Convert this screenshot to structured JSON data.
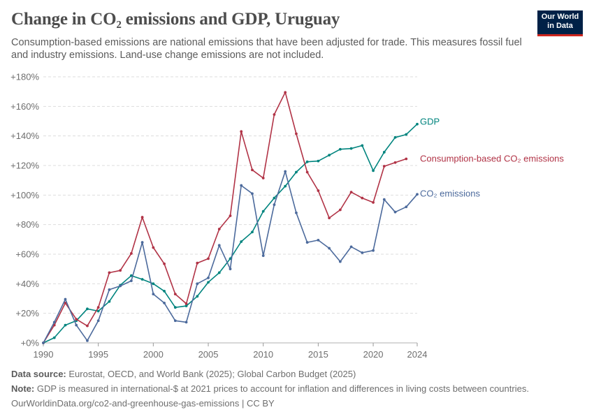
{
  "header": {
    "title": "Change in CO₂ emissions and GDP, Uruguay",
    "subtitle": "Consumption-based emissions are national emissions that have been adjusted for trade. This measures fossil fuel and industry emissions. Land-use change emissions are not included.",
    "logo_line1": "Our World",
    "logo_line2": "in Data",
    "logo_color": "#002147",
    "logo_accent": "#ce261e"
  },
  "footer": {
    "source_label": "Data source:",
    "source_text": "Eurostat, OECD, and World Bank (2025); Global Carbon Budget (2025)",
    "note_label": "Note:",
    "note_text": "GDP is measured in international-$ at 2021 prices to account for inflation and differences in living costs between countries.",
    "url": "OurWorldinData.org/co2-and-greenhouse-gas-emissions | CC BY"
  },
  "chart_data": {
    "type": "line",
    "xlim": [
      1990,
      2024
    ],
    "ylim": [
      0,
      180
    ],
    "x_ticks": [
      1990,
      1995,
      2000,
      2005,
      2010,
      2015,
      2020,
      2024
    ],
    "x_tick_labels": [
      "1990",
      "1995",
      "2000",
      "2005",
      "2010",
      "2015",
      "2020",
      "2024"
    ],
    "y_ticks": [
      0,
      20,
      40,
      60,
      80,
      100,
      120,
      140,
      160,
      180
    ],
    "y_tick_labels": [
      "+0%",
      "+20%",
      "+40%",
      "+60%",
      "+80%",
      "+100%",
      "+120%",
      "+140%",
      "+160%",
      "+180%"
    ],
    "grid": true,
    "series": [
      {
        "name": "GDP",
        "color": "#00847e",
        "x": [
          1990,
          1991,
          1992,
          1993,
          1994,
          1995,
          1996,
          1997,
          1998,
          1999,
          2000,
          2001,
          2002,
          2003,
          2004,
          2005,
          2006,
          2007,
          2008,
          2009,
          2010,
          2011,
          2012,
          2013,
          2014,
          2015,
          2016,
          2017,
          2018,
          2019,
          2020,
          2021,
          2022,
          2023,
          2024
        ],
        "values": [
          0,
          3.5,
          12,
          15,
          23,
          21.5,
          28,
          39,
          45.5,
          43,
          40,
          35,
          24,
          25,
          31.5,
          41,
          47.5,
          57,
          68.5,
          75,
          89,
          98,
          106,
          115.5,
          122.5,
          123,
          127,
          131,
          131.5,
          133.5,
          116.5,
          129,
          139,
          141,
          148
        ]
      },
      {
        "name": "Consumption-based CO₂ emissions",
        "color": "#b13346",
        "x": [
          1990,
          1991,
          1992,
          1993,
          1994,
          1995,
          1996,
          1997,
          1998,
          1999,
          2000,
          2001,
          2002,
          2003,
          2004,
          2005,
          2006,
          2007,
          2008,
          2009,
          2010,
          2011,
          2012,
          2013,
          2014,
          2015,
          2016,
          2017,
          2018,
          2019,
          2020,
          2021,
          2022,
          2023,
          2024
        ],
        "values": [
          0,
          12,
          27,
          16,
          11.5,
          24,
          47.5,
          49,
          60.5,
          85,
          64.5,
          53.5,
          33,
          26.5,
          54,
          57,
          77,
          86,
          143,
          117,
          111.5,
          154.5,
          169.5,
          141.5,
          115.5,
          103,
          84.5,
          90,
          102,
          98,
          95,
          119.5,
          122,
          124.5,
          null
        ]
      },
      {
        "name": "CO₂ emissions",
        "color": "#4c6a9c",
        "x": [
          1990,
          1991,
          1992,
          1993,
          1994,
          1995,
          1996,
          1997,
          1998,
          1999,
          2000,
          2001,
          2002,
          2003,
          2004,
          2005,
          2006,
          2007,
          2008,
          2009,
          2010,
          2011,
          2012,
          2013,
          2014,
          2015,
          2016,
          2017,
          2018,
          2019,
          2020,
          2021,
          2022,
          2023,
          2024
        ],
        "values": [
          0,
          14,
          29.5,
          12,
          1.5,
          15,
          36,
          38.5,
          42,
          68,
          33,
          27,
          15,
          14,
          40,
          44,
          66,
          50,
          106.5,
          101,
          59,
          93.5,
          116,
          88,
          68,
          69.5,
          64,
          55,
          65,
          61,
          62.5,
          97,
          88.5,
          92,
          100.5
        ]
      }
    ]
  }
}
